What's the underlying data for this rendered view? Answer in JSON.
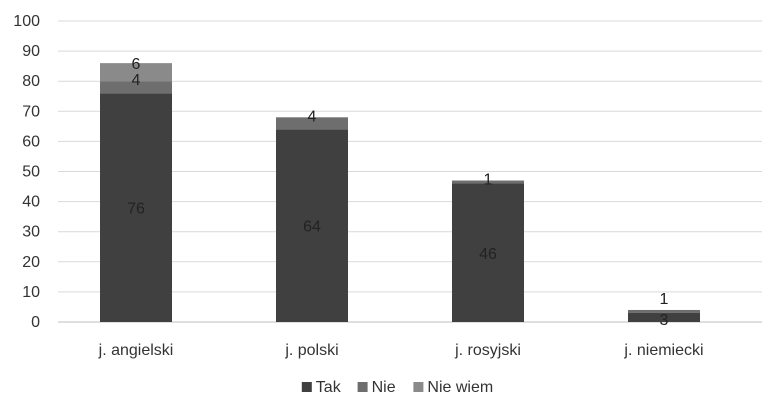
{
  "chart_data": {
    "type": "bar",
    "stacked": true,
    "title": "",
    "xlabel": "",
    "ylabel": "",
    "categories": [
      "j. angielski",
      "j. polski",
      "j. rosyjski",
      "j. niemiecki"
    ],
    "series": [
      {
        "name": "Tak",
        "values": [
          76,
          64,
          46,
          3
        ],
        "color": "#404040"
      },
      {
        "name": "Nie",
        "values": [
          4,
          4,
          1,
          1
        ],
        "color": "#6e6e6e"
      },
      {
        "name": "Nie wiem",
        "values": [
          6,
          0,
          0,
          0
        ],
        "color": "#8a8a8a"
      }
    ],
    "data_labels": [
      [
        "76",
        "64",
        "46",
        "3"
      ],
      [
        "4",
        "4",
        "1",
        "1"
      ],
      [
        "6",
        "",
        "",
        ""
      ]
    ],
    "ylim": [
      0,
      100
    ],
    "yticks": [
      0,
      10,
      20,
      30,
      40,
      50,
      60,
      70,
      80,
      90,
      100
    ],
    "grid": true,
    "legend_position": "bottom"
  }
}
